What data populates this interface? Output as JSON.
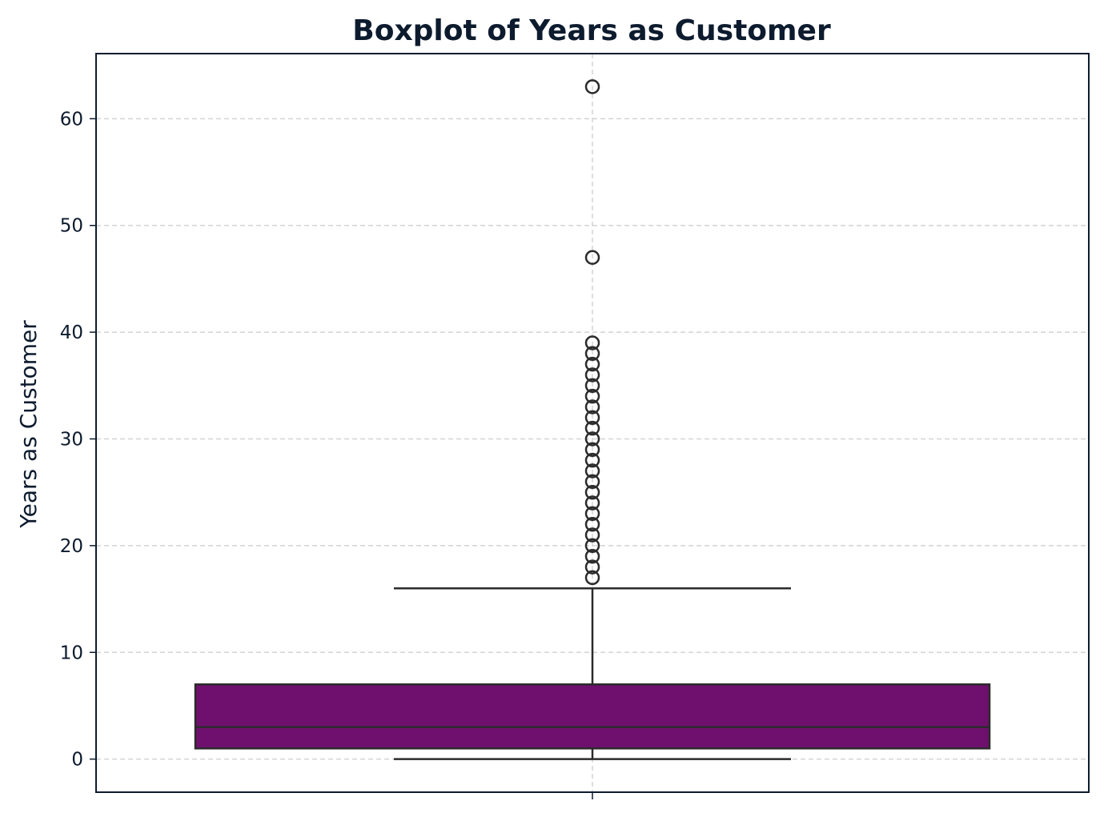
{
  "chart_data": {
    "type": "boxplot",
    "title": "Boxplot of Years as Customer",
    "xlabel": "",
    "ylabel": "Years as Customer",
    "ylim": [
      -3.1,
      66.1
    ],
    "yticks": [
      0,
      10,
      20,
      30,
      40,
      50,
      60
    ],
    "grid": true,
    "box": {
      "whisker_low": 0,
      "q1": 1,
      "median": 3,
      "q3": 7,
      "whisker_high": 16
    },
    "outliers": [
      17,
      18,
      19,
      20,
      21,
      22,
      23,
      24,
      25,
      26,
      27,
      28,
      29,
      30,
      31,
      32,
      33,
      34,
      35,
      36,
      37,
      38,
      39,
      47,
      63
    ],
    "colors": {
      "box_fill": "#6f106e",
      "lines": "#2b2b2b",
      "grid": "#d3d3d3",
      "frame": "#0d1b2e",
      "text": "#0d1b2e"
    }
  }
}
